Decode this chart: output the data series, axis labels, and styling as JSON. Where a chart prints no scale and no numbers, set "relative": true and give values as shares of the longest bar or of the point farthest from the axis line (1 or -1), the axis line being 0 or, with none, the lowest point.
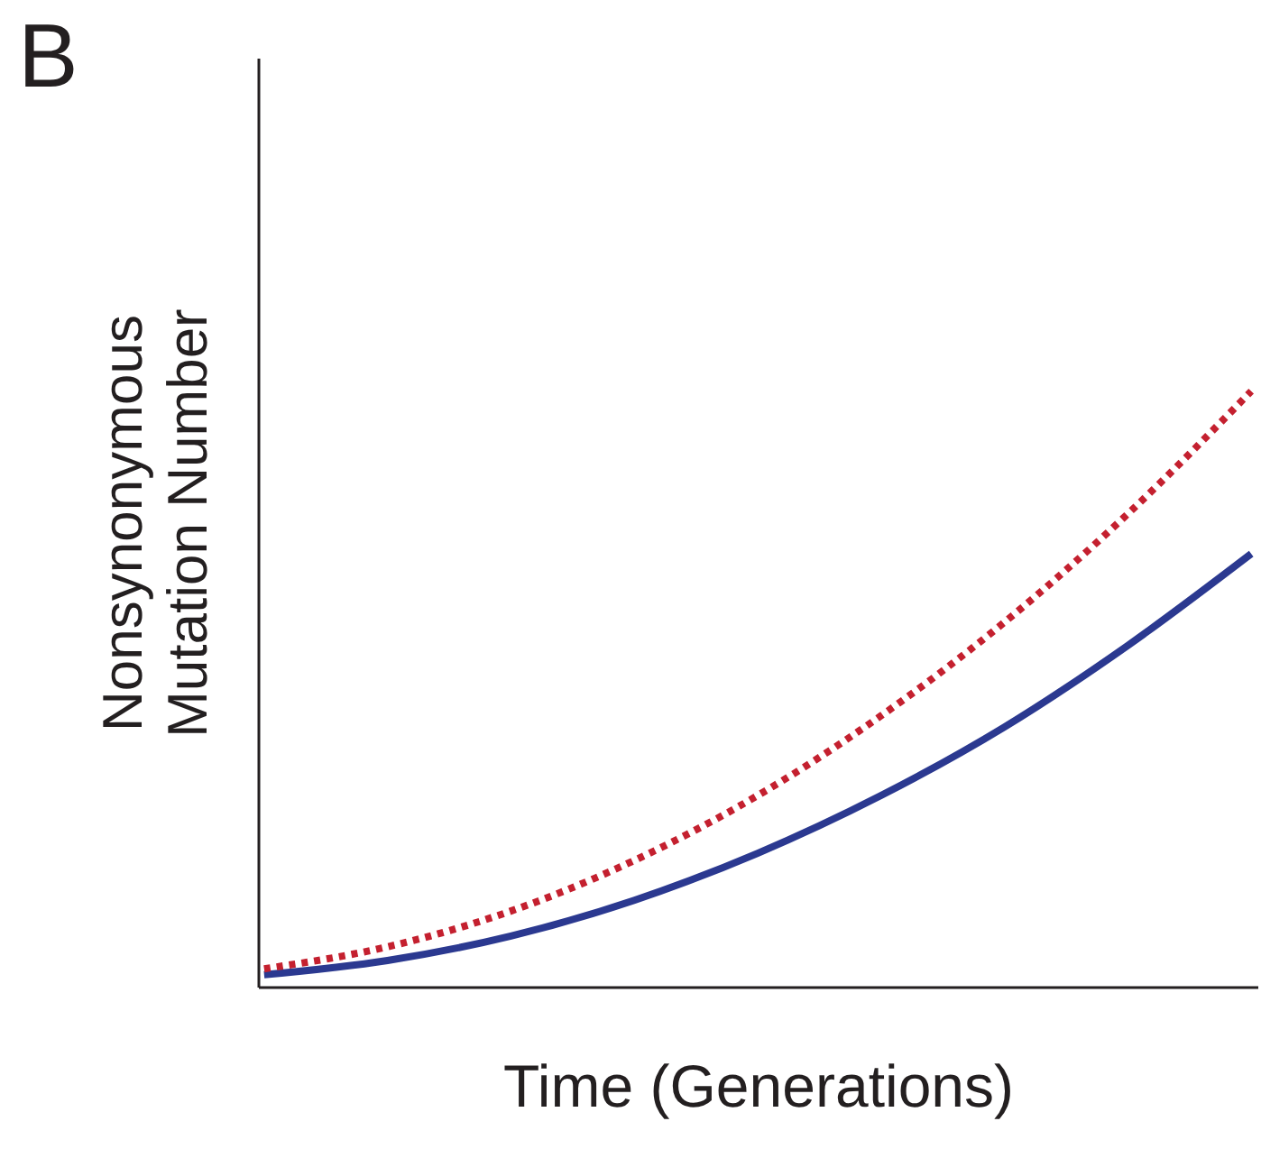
{
  "chart_data": {
    "type": "line",
    "relative": true,
    "xlabel": "Time (Generations)",
    "ylabel": "Nonsynonymous\nMutation Number",
    "annotations": [
      "B"
    ],
    "categories": [
      null,
      null,
      null,
      null,
      null,
      null,
      null,
      null,
      null
    ],
    "series": [
      {
        "color": "#2b3990",
        "line_style": "solid",
        "values": [
          0.02,
          0.044,
          0.085,
          0.145,
          0.224,
          0.321,
          0.436,
          0.573,
          0.727
        ]
      },
      {
        "color": "#c4202f",
        "line_style": "dotted",
        "values": [
          0.03,
          0.067,
          0.127,
          0.212,
          0.321,
          0.455,
          0.612,
          0.794,
          1
        ]
      }
    ],
    "grid": false,
    "marker": "none"
  }
}
